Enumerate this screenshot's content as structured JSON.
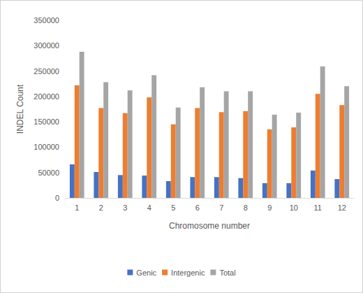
{
  "chart_data": {
    "type": "bar",
    "x_label": "Chromosome number",
    "y_label": "INDEL Count",
    "categories": [
      "1",
      "2",
      "3",
      "4",
      "5",
      "6",
      "7",
      "8",
      "9",
      "10",
      "11",
      "12"
    ],
    "series": [
      {
        "name": "Genic",
        "color": "#4472c4",
        "values": [
          66000,
          51000,
          45000,
          44000,
          33000,
          41000,
          41000,
          39000,
          29000,
          29000,
          54000,
          37000
        ]
      },
      {
        "name": "Intergenic",
        "color": "#ed7d31",
        "values": [
          222000,
          177000,
          167000,
          198000,
          145000,
          177000,
          169000,
          171000,
          135000,
          139000,
          205000,
          183000
        ]
      },
      {
        "name": "Total",
        "color": "#a5a5a5",
        "values": [
          288000,
          228000,
          212000,
          242000,
          178000,
          218000,
          210000,
          210000,
          164000,
          168000,
          259000,
          220000
        ]
      }
    ],
    "ylim": [
      0,
      350000
    ],
    "yticks": [
      0,
      50000,
      100000,
      150000,
      200000,
      250000,
      300000,
      350000
    ],
    "grid": false,
    "legend": "bottom"
  }
}
